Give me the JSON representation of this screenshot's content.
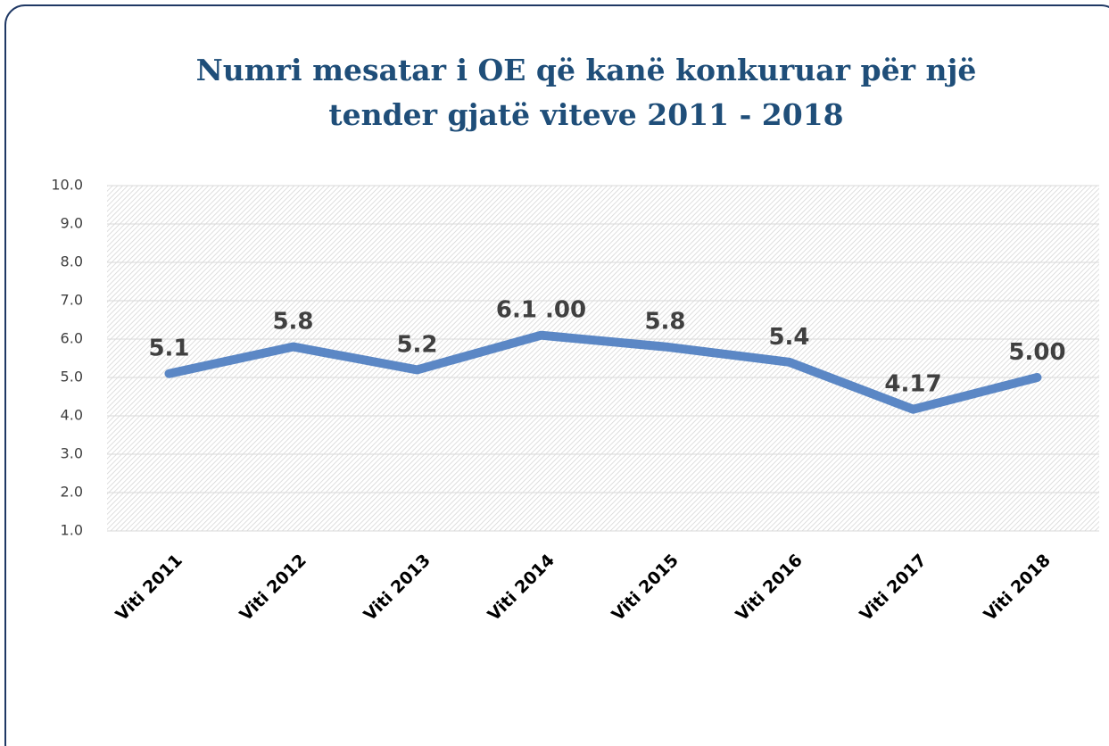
{
  "chart_data": {
    "type": "line",
    "title": [
      "Numri mesatar i OE që kanë konkuruar për një",
      "tender  gjatë  viteve 2011 - 2018"
    ],
    "categories": [
      "Viti 2011",
      "Viti 2012",
      "Viti 2013",
      "Viti 2014",
      "Viti 2015",
      "Viti 2016",
      "Viti 2017",
      "Viti 2018"
    ],
    "series": [
      {
        "color": "#5b87c5",
        "values": [
          5.1,
          5.8,
          5.2,
          6.1,
          5.8,
          5.4,
          4.17,
          5.0
        ],
        "value_labels": [
          "5.1",
          "5.8",
          "5.2",
          "6.1 .00",
          "5.8",
          "5.4",
          "4.17",
          "5.00"
        ]
      }
    ],
    "ylim": [
      1,
      10
    ],
    "yticks": [
      {
        "value": 1,
        "label": "1.0"
      },
      {
        "value": 2,
        "label": "2.0"
      },
      {
        "value": 3,
        "label": "3.0"
      },
      {
        "value": 4,
        "label": "4.0"
      },
      {
        "value": 5,
        "label": "5.0"
      },
      {
        "value": 6,
        "label": "6.0"
      },
      {
        "value": 7,
        "label": "7.0"
      },
      {
        "value": 8,
        "label": "8.0"
      },
      {
        "value": 9,
        "label": "9.0"
      },
      {
        "value": 10,
        "label": "10.0"
      }
    ],
    "grid": true
  }
}
